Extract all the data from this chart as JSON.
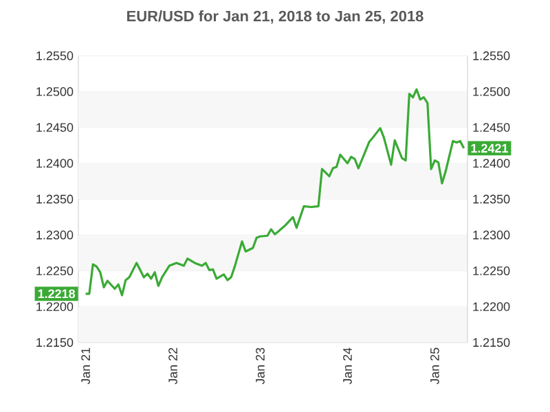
{
  "chart_data": {
    "type": "line",
    "title": "EUR/USD for Jan 21, 2018 to Jan 25, 2018",
    "series": [
      {
        "color": "#3aaa35",
        "line_style": "solid",
        "marker": "none",
        "x": [
          "2018-01-21T00:00",
          "2018-01-21T01:00",
          "2018-01-21T02:00",
          "2018-01-21T03:00",
          "2018-01-21T04:00",
          "2018-01-21T05:00",
          "2018-01-21T06:00",
          "2018-01-21T08:00",
          "2018-01-21T09:00",
          "2018-01-21T10:00",
          "2018-01-21T11:00",
          "2018-01-21T12:00",
          "2018-01-21T14:00",
          "2018-01-21T15:00",
          "2018-01-21T16:00",
          "2018-01-21T17:00",
          "2018-01-21T18:00",
          "2018-01-21T19:00",
          "2018-01-21T20:00",
          "2018-01-21T21:00",
          "2018-01-21T23:00",
          "2018-01-22T01:00",
          "2018-01-22T02:00",
          "2018-01-22T03:00",
          "2018-01-22T04:00",
          "2018-01-22T06:00",
          "2018-01-22T08:00",
          "2018-01-22T09:00",
          "2018-01-22T10:00",
          "2018-01-22T11:00",
          "2018-01-22T12:00",
          "2018-01-22T14:00",
          "2018-01-22T15:00",
          "2018-01-22T16:00",
          "2018-01-22T17:00",
          "2018-01-22T19:00",
          "2018-01-22T20:00",
          "2018-01-22T22:00",
          "2018-01-22T23:00",
          "2018-01-23T00:00",
          "2018-01-23T02:00",
          "2018-01-23T03:00",
          "2018-01-23T04:00",
          "2018-01-23T05:00",
          "2018-01-23T07:00",
          "2018-01-23T09:00",
          "2018-01-23T10:00",
          "2018-01-23T12:00",
          "2018-01-23T14:00",
          "2018-01-23T16:00",
          "2018-01-23T17:00",
          "2018-01-23T19:00",
          "2018-01-23T20:00",
          "2018-01-23T21:00",
          "2018-01-23T22:00",
          "2018-01-24T00:00",
          "2018-01-24T01:00",
          "2018-01-24T02:00",
          "2018-01-24T03:00",
          "2018-01-24T06:00",
          "2018-01-24T07:00",
          "2018-01-24T09:00",
          "2018-01-24T10:00",
          "2018-01-24T12:00",
          "2018-01-24T13:00",
          "2018-01-24T15:00",
          "2018-01-24T16:00",
          "2018-01-24T17:00",
          "2018-01-24T18:00",
          "2018-01-24T19:00",
          "2018-01-24T20:00",
          "2018-01-24T21:00",
          "2018-01-24T22:00",
          "2018-01-24T23:00",
          "2018-01-25T00:00",
          "2018-01-25T01:00",
          "2018-01-25T02:00",
          "2018-01-25T03:00",
          "2018-01-25T05:00",
          "2018-01-25T06:00",
          "2018-01-25T07:00",
          "2018-01-25T08:00"
        ],
        "values": [
          1.2218,
          1.2218,
          1.2259,
          1.2256,
          1.2248,
          1.2227,
          1.2236,
          1.2225,
          1.2231,
          1.2216,
          1.2237,
          1.2241,
          1.2261,
          1.2251,
          1.2241,
          1.2246,
          1.2239,
          1.2248,
          1.2229,
          1.2241,
          1.2257,
          1.2261,
          1.2259,
          1.2257,
          1.2267,
          1.2261,
          1.2257,
          1.2261,
          1.2251,
          1.2252,
          1.2239,
          1.2245,
          1.2237,
          1.2241,
          1.2256,
          1.2291,
          1.2277,
          1.2282,
          1.2296,
          1.2298,
          1.2299,
          1.2308,
          1.2301,
          1.2305,
          1.2314,
          1.2325,
          1.231,
          1.234,
          1.2339,
          1.234,
          1.2392,
          1.2382,
          1.2393,
          1.2395,
          1.2412,
          1.24,
          1.2409,
          1.2406,
          1.2393,
          1.243,
          1.2436,
          1.2449,
          1.2436,
          1.2398,
          1.2432,
          1.2407,
          1.2404,
          1.2497,
          1.2492,
          1.2503,
          1.2489,
          1.2492,
          1.2484,
          1.2392,
          1.2404,
          1.2401,
          1.2372,
          1.2389,
          1.2431,
          1.2429,
          1.2431,
          1.2421
        ]
      }
    ],
    "xlim": [
      "2018-01-20T22:00",
      "2018-01-25T09:00"
    ],
    "xticks": [
      {
        "value": "2018-01-21",
        "label": "Jan 21"
      },
      {
        "value": "2018-01-22",
        "label": "Jan 22"
      },
      {
        "value": "2018-01-23",
        "label": "Jan 23"
      },
      {
        "value": "2018-01-24",
        "label": "Jan 24"
      },
      {
        "value": "2018-01-25",
        "label": "Jan 25"
      }
    ],
    "ylim": [
      1.215,
      1.255
    ],
    "yticks": [
      {
        "value": 1.215,
        "label": "1.2150"
      },
      {
        "value": 1.22,
        "label": "1.2200"
      },
      {
        "value": 1.225,
        "label": "1.2250"
      },
      {
        "value": 1.23,
        "label": "1.2300"
      },
      {
        "value": 1.235,
        "label": "1.2350"
      },
      {
        "value": 1.24,
        "label": "1.2400"
      },
      {
        "value": 1.245,
        "label": "1.2450"
      },
      {
        "value": 1.25,
        "label": "1.2500"
      },
      {
        "value": 1.255,
        "label": "1.2550"
      }
    ],
    "y2lim": [
      1.215,
      1.255
    ],
    "y2ticks": [
      {
        "value": 1.215,
        "label": "1.2150"
      },
      {
        "value": 1.22,
        "label": "1.2200"
      },
      {
        "value": 1.225,
        "label": "1.2250"
      },
      {
        "value": 1.23,
        "label": "1.2300"
      },
      {
        "value": 1.235,
        "label": "1.2350"
      },
      {
        "value": 1.24,
        "label": "1.2400"
      },
      {
        "value": 1.245,
        "label": "1.2450"
      },
      {
        "value": 1.25,
        "label": "1.2500"
      },
      {
        "value": 1.255,
        "label": "1.2550"
      }
    ],
    "grid": "y",
    "annotations": [
      {
        "text": "1.2218",
        "x": "2018-01-21T00:00",
        "y": 1.2218
      },
      {
        "text": "1.2421",
        "x": "2018-01-25T08:00",
        "y": 1.2421
      }
    ]
  }
}
